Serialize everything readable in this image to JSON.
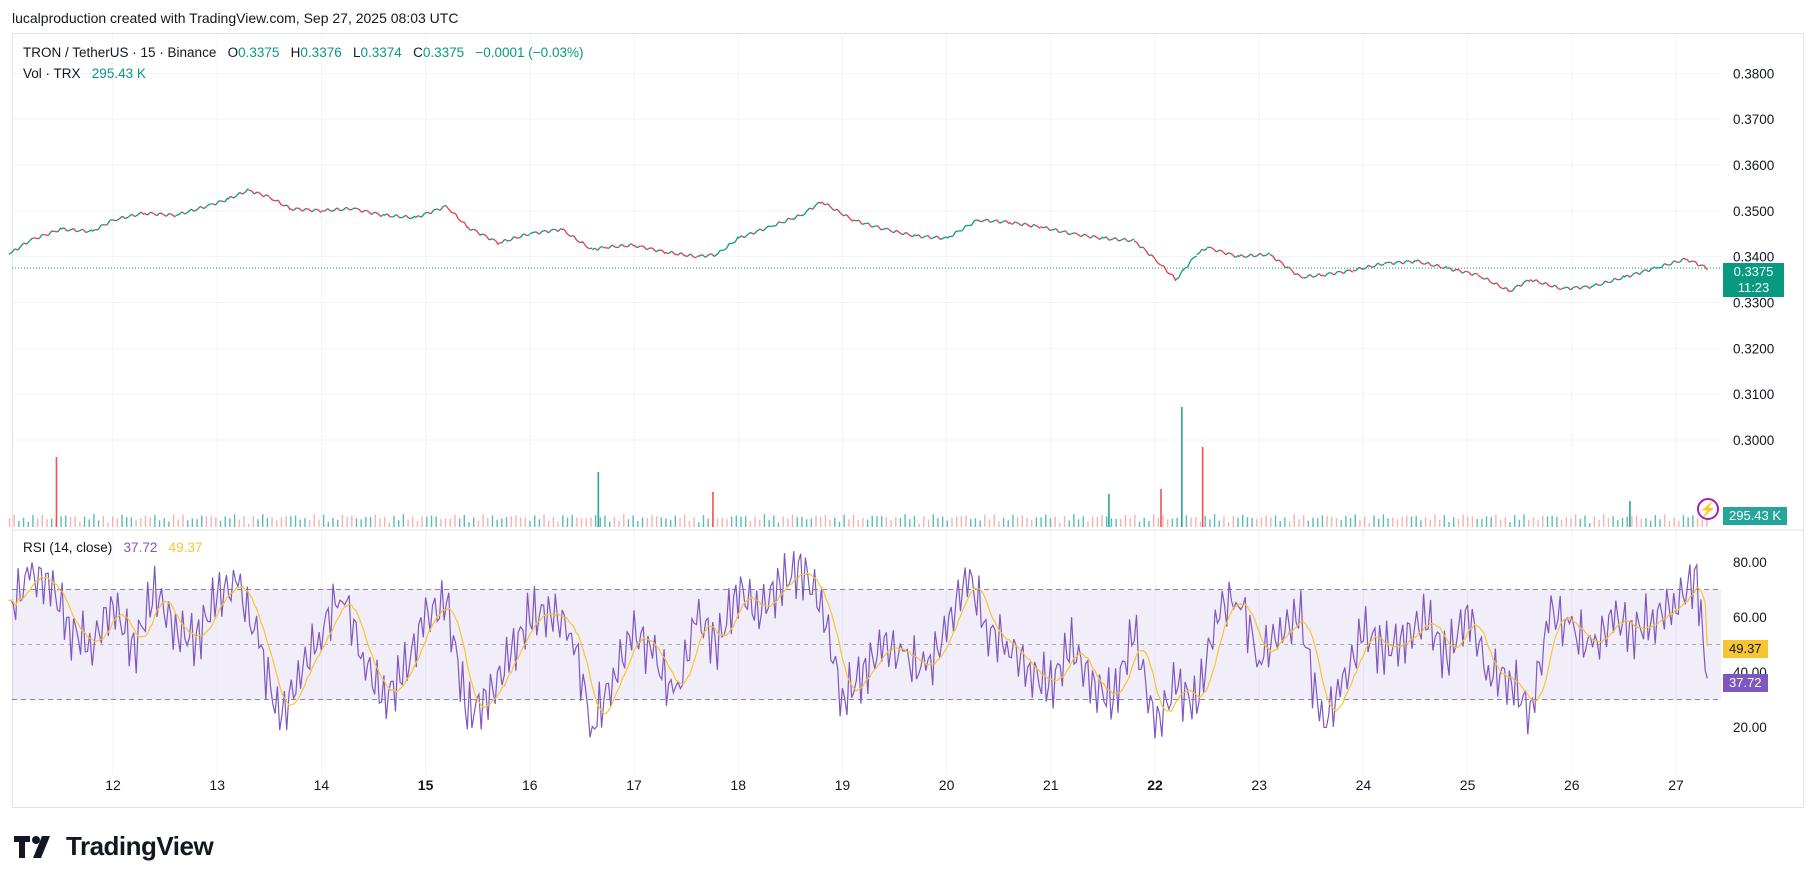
{
  "header": {
    "attribution": "lucalproduction created with TradingView.com, Sep 27, 2025 08:03 UTC"
  },
  "legend": {
    "symbol": "TRON / TetherUS · 15 · Binance",
    "o_label": "O",
    "o_value": "0.3375",
    "h_label": "H",
    "h_value": "0.3376",
    "l_label": "L",
    "l_value": "0.3374",
    "c_label": "C",
    "c_value": "0.3375",
    "change": "−0.0001 (−0.03%)",
    "vol_label": "Vol · TRX",
    "vol_value": "295.43 K",
    "rsi_label": "RSI (14, close)",
    "rsi_value": "37.72",
    "rsi_ma_value": "49.37"
  },
  "badges": {
    "price": "0.3375",
    "countdown": "11:23",
    "volume": "295.43 K",
    "rsi_ma": "49.37",
    "rsi": "37.72"
  },
  "colors": {
    "up": "#089981",
    "down": "#f23645",
    "rsi": "#7e57c2",
    "rsi_ma": "#f7c531",
    "rsi_band": "#7e57c2"
  },
  "branding": {
    "logo_text": "TradingView"
  },
  "icons": {
    "alert": "lightning-icon"
  },
  "chart_data": [
    {
      "type": "line",
      "name": "price",
      "y_ticks": [
        "0.3800",
        "0.3700",
        "0.3600",
        "0.3500",
        "0.3400",
        "0.3300",
        "0.3200",
        "0.3100",
        "0.3000"
      ],
      "ylim": [
        0.288,
        0.384
      ],
      "x_ticks": [
        "12",
        "13",
        "14",
        "15",
        "16",
        "17",
        "18",
        "19",
        "20",
        "21",
        "22",
        "23",
        "24",
        "25",
        "26",
        "27"
      ],
      "x_bold": [
        "15",
        "22"
      ],
      "x": [
        11.0,
        11.2,
        11.5,
        11.8,
        12.0,
        12.3,
        12.6,
        12.9,
        13.1,
        13.3,
        13.5,
        13.7,
        14.0,
        14.3,
        14.6,
        14.9,
        15.2,
        15.4,
        15.7,
        16.0,
        16.3,
        16.6,
        16.7,
        17.0,
        17.3,
        17.6,
        17.8,
        18.0,
        18.3,
        18.6,
        18.8,
        19.1,
        19.4,
        19.7,
        20.0,
        20.3,
        20.6,
        20.9,
        21.2,
        21.5,
        21.8,
        22.0,
        22.2,
        22.4,
        22.5,
        22.8,
        23.1,
        23.4,
        23.6,
        23.9,
        24.2,
        24.5,
        24.8,
        25.1,
        25.4,
        25.6,
        25.9,
        26.2,
        26.5,
        26.8,
        27.1,
        27.3
      ],
      "y": [
        0.3405,
        0.3435,
        0.346,
        0.3455,
        0.348,
        0.3495,
        0.349,
        0.351,
        0.3525,
        0.3545,
        0.353,
        0.3505,
        0.35,
        0.3505,
        0.349,
        0.3485,
        0.351,
        0.3465,
        0.343,
        0.345,
        0.346,
        0.3415,
        0.342,
        0.3425,
        0.341,
        0.34,
        0.3405,
        0.344,
        0.3465,
        0.349,
        0.352,
        0.348,
        0.346,
        0.3445,
        0.344,
        0.348,
        0.3475,
        0.3465,
        0.345,
        0.344,
        0.3435,
        0.3395,
        0.335,
        0.3405,
        0.342,
        0.34,
        0.3405,
        0.3355,
        0.336,
        0.337,
        0.3385,
        0.339,
        0.3375,
        0.336,
        0.3325,
        0.335,
        0.333,
        0.3335,
        0.3355,
        0.3375,
        0.3395,
        0.3375
      ],
      "last_price": 0.3375,
      "volume_spikes": [
        {
          "x": 11.45,
          "v": 70
        },
        {
          "x": 16.65,
          "v": 55
        },
        {
          "x": 17.75,
          "v": 35
        },
        {
          "x": 21.55,
          "v": 33
        },
        {
          "x": 22.05,
          "v": 38
        },
        {
          "x": 22.25,
          "v": 120
        },
        {
          "x": 22.45,
          "v": 80
        },
        {
          "x": 26.55,
          "v": 26
        }
      ]
    },
    {
      "type": "line",
      "name": "RSI",
      "y_ticks": [
        "80.00",
        "60.00",
        "40.00",
        "20.00"
      ],
      "ylim": [
        12,
        84
      ],
      "bands": [
        70,
        50,
        30
      ],
      "x": [
        11.0,
        11.2,
        11.4,
        11.6,
        11.8,
        12.0,
        12.2,
        12.4,
        12.6,
        12.8,
        13.0,
        13.2,
        13.4,
        13.6,
        13.8,
        14.0,
        14.2,
        14.4,
        14.6,
        14.8,
        15.0,
        15.2,
        15.4,
        15.6,
        15.8,
        16.0,
        16.2,
        16.4,
        16.6,
        16.8,
        17.0,
        17.2,
        17.4,
        17.6,
        17.8,
        18.0,
        18.2,
        18.4,
        18.6,
        18.8,
        19.0,
        19.2,
        19.4,
        19.6,
        19.8,
        20.0,
        20.2,
        20.4,
        20.6,
        20.8,
        21.0,
        21.2,
        21.4,
        21.6,
        21.8,
        22.0,
        22.2,
        22.4,
        22.6,
        22.8,
        23.0,
        23.2,
        23.4,
        23.6,
        23.8,
        24.0,
        24.2,
        24.4,
        24.6,
        24.8,
        25.0,
        25.2,
        25.4,
        25.6,
        25.8,
        26.0,
        26.2,
        26.4,
        26.6,
        26.8,
        27.0,
        27.2,
        27.3
      ],
      "y": [
        62,
        75,
        72,
        55,
        50,
        65,
        48,
        70,
        55,
        52,
        68,
        72,
        50,
        22,
        40,
        55,
        70,
        45,
        30,
        40,
        60,
        65,
        25,
        30,
        45,
        60,
        62,
        55,
        20,
        38,
        55,
        45,
        30,
        60,
        50,
        70,
        62,
        72,
        78,
        65,
        30,
        40,
        50,
        45,
        40,
        55,
        76,
        55,
        50,
        40,
        35,
        50,
        35,
        30,
        55,
        20,
        35,
        28,
        62,
        68,
        45,
        55,
        60,
        20,
        35,
        55,
        48,
        52,
        60,
        45,
        62,
        40,
        38,
        25,
        62,
        55,
        48,
        60,
        55,
        60,
        65,
        75,
        35
      ],
      "rsi_last": 37.72,
      "ma_last": 49.37
    }
  ]
}
